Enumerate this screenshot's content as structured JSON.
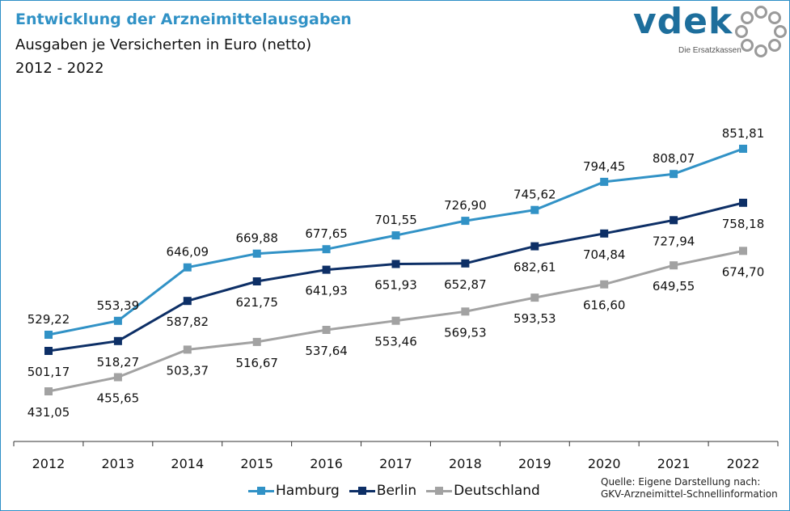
{
  "header": {
    "title": "Entwicklung der Arzneimittelausgaben",
    "subtitle": "Ausgaben je Versicherten in Euro (netto)",
    "period": "2012 - 2022"
  },
  "logo": {
    "wordmark": "vdek",
    "tagline": "Die Ersatzkassen",
    "ring_icon": "dotted-ring-icon",
    "color": "#1d6e9c"
  },
  "source": {
    "line1": "Quelle: Eigene Darstellung nach:",
    "line2": "GKV-Arzneimittel-Schnellinformation"
  },
  "chart_data": {
    "type": "line",
    "title": "Entwicklung der Arzneimittelausgaben",
    "subtitle": "Ausgaben je Versicherten in Euro (netto)",
    "xlabel": "",
    "ylabel": "",
    "categories": [
      "2012",
      "2013",
      "2014",
      "2015",
      "2016",
      "2017",
      "2018",
      "2019",
      "2020",
      "2021",
      "2022"
    ],
    "ylim": [
      400,
      875
    ],
    "grid": false,
    "legend_position": "bottom",
    "series": [
      {
        "name": "Hamburg",
        "color": "#3192c6",
        "values": [
          529.22,
          553.39,
          646.09,
          669.88,
          677.65,
          701.55,
          726.9,
          745.62,
          794.45,
          808.07,
          851.81
        ],
        "labels": [
          "529,22",
          "553,39",
          "646,09",
          "669,88",
          "677,65",
          "701,55",
          "726,90",
          "745,62",
          "794,45",
          "808,07",
          "851,81"
        ],
        "label_side": "above"
      },
      {
        "name": "Berlin",
        "color": "#0d2f66",
        "values": [
          501.17,
          518.27,
          587.82,
          621.75,
          641.93,
          651.93,
          652.87,
          682.61,
          704.84,
          727.94,
          758.18
        ],
        "labels": [
          "501,17",
          "518,27",
          "587,82",
          "621,75",
          "641,93",
          "651,93",
          "652,87",
          "682,61",
          "704,84",
          "727,94",
          "758,18"
        ],
        "label_side": "below"
      },
      {
        "name": "Deutschland",
        "color": "#a2a2a2",
        "values": [
          431.05,
          455.65,
          503.37,
          516.67,
          537.64,
          553.46,
          569.53,
          593.53,
          616.6,
          649.55,
          674.7
        ],
        "labels": [
          "431,05",
          "455,65",
          "503,37",
          "516,67",
          "537,64",
          "553,46",
          "569,53",
          "593,53",
          "616,60",
          "649,55",
          "674,70"
        ],
        "label_side": "below"
      }
    ]
  }
}
